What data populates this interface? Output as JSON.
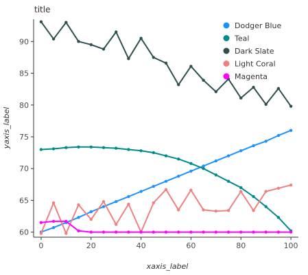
{
  "chart_data": {
    "type": "line",
    "title": "title",
    "xlabel": "xaxis_label",
    "ylabel": "yaxis_label",
    "xlim": [
      -3,
      103
    ],
    "ylim": [
      59.2,
      93.5
    ],
    "x_ticks": [
      0,
      20,
      40,
      60,
      80,
      100
    ],
    "y_ticks": [
      60,
      65,
      70,
      75,
      80,
      85,
      90
    ],
    "grid": false,
    "legend_position": "top-right",
    "series": [
      {
        "name": "Dodger Blue",
        "color": "#1E90FF",
        "x": [
          0,
          5,
          10,
          15,
          20,
          25,
          30,
          35,
          40,
          45,
          50,
          55,
          60,
          65,
          70,
          75,
          80,
          85,
          90,
          95,
          100
        ],
        "y": [
          60.0,
          60.7,
          61.5,
          62.3,
          63.2,
          64.0,
          64.8,
          65.6,
          66.4,
          67.2,
          68.0,
          68.8,
          69.6,
          70.4,
          71.2,
          72.0,
          72.8,
          73.6,
          74.3,
          75.2,
          76.0
        ]
      },
      {
        "name": "Teal",
        "color": "#008B8B",
        "x": [
          0,
          5,
          10,
          15,
          20,
          25,
          30,
          35,
          40,
          45,
          50,
          55,
          60,
          65,
          70,
          75,
          80,
          85,
          90,
          95,
          100
        ],
        "y": [
          73.0,
          73.1,
          73.3,
          73.4,
          73.4,
          73.3,
          73.2,
          73.0,
          72.8,
          72.5,
          72.0,
          71.5,
          70.8,
          70.0,
          69.0,
          68.0,
          67.0,
          65.6,
          64.0,
          62.3,
          60.2
        ]
      },
      {
        "name": "Dark Slate",
        "color": "#2F4F4F",
        "x": [
          0,
          5,
          10,
          15,
          20,
          25,
          30,
          35,
          40,
          45,
          50,
          55,
          60,
          65,
          70,
          75,
          80,
          85,
          90,
          95,
          100
        ],
        "y": [
          93.1,
          90.4,
          93.0,
          90.0,
          89.5,
          88.8,
          91.5,
          87.3,
          90.5,
          87.5,
          86.6,
          83.2,
          86.1,
          83.9,
          82.1,
          84.1,
          81.1,
          82.8,
          80.1,
          82.6,
          79.8
        ]
      },
      {
        "name": "Light Coral",
        "color": "#F08080",
        "x": [
          0,
          5,
          10,
          15,
          20,
          25,
          30,
          35,
          40,
          45,
          50,
          55,
          60,
          65,
          70,
          75,
          80,
          85,
          90,
          95,
          100
        ],
        "y": [
          59.8,
          64.6,
          59.8,
          64.3,
          62.0,
          64.8,
          61.2,
          64.4,
          60.0,
          64.6,
          66.7,
          63.5,
          66.6,
          63.5,
          63.3,
          63.4,
          66.4,
          63.4,
          66.4,
          66.9,
          67.4
        ]
      },
      {
        "name": "Magenta",
        "color": "#FF00FF",
        "x": [
          0,
          5,
          10,
          15,
          20,
          25,
          30,
          35,
          40,
          45,
          50,
          55,
          60,
          65,
          70,
          75,
          80,
          85,
          90,
          95,
          100
        ],
        "y": [
          61.5,
          61.7,
          61.7,
          60.2,
          60.0,
          60.0,
          60.0,
          60.0,
          60.0,
          60.0,
          60.0,
          60.0,
          60.0,
          60.0,
          60.0,
          60.0,
          60.0,
          60.0,
          60.0,
          60.0,
          60.0
        ]
      }
    ]
  }
}
